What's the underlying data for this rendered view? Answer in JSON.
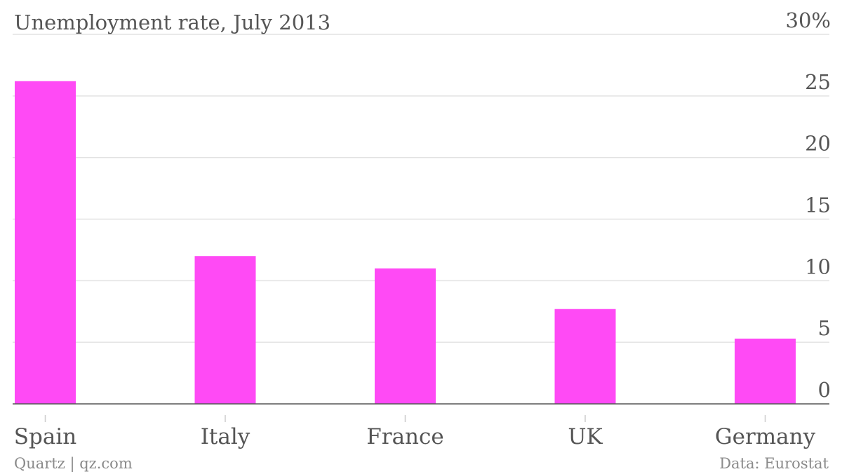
{
  "chart_data": {
    "type": "bar",
    "title": "Unemployment rate, July 2013",
    "categories": [
      "Spain",
      "Italy",
      "France",
      "UK",
      "Germany"
    ],
    "values": [
      26.2,
      12.0,
      11.0,
      7.7,
      5.3
    ],
    "ylim": [
      0,
      30
    ],
    "yticks": [
      0,
      5,
      10,
      15,
      20,
      25,
      30
    ],
    "ytick_labels": [
      "0",
      "5",
      "10",
      "15",
      "20",
      "25",
      "30%"
    ],
    "bar_color": "#ff4af5",
    "grid": true,
    "y_axis_position": "right",
    "source": "Data: Eurostat",
    "credit": "Quartz | qz.com"
  }
}
